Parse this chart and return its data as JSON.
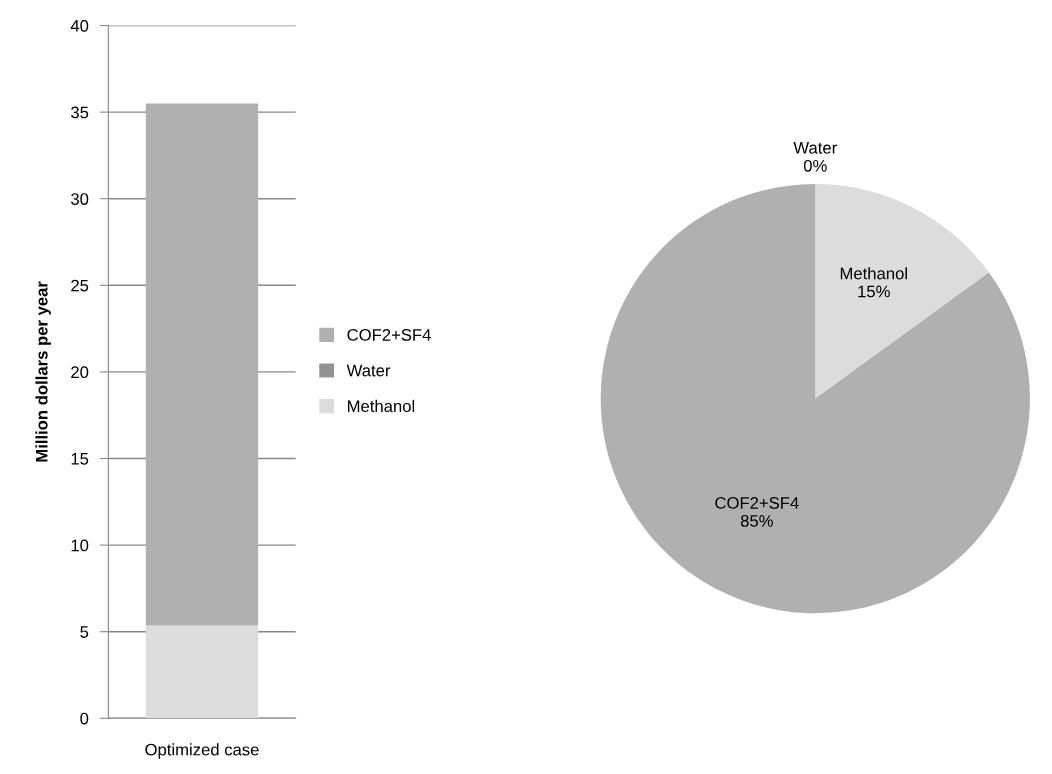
{
  "chart_data": [
    {
      "type": "bar",
      "stacked": true,
      "categories": [
        "Optimized case"
      ],
      "ylabel": "Million dollars per year",
      "ylim": [
        0,
        40
      ],
      "yticks": [
        0,
        5,
        10,
        15,
        20,
        25,
        30,
        35,
        40
      ],
      "grid": "y",
      "legend": "right",
      "series": [
        {
          "name": "Methanol",
          "color": "#dcdcdc",
          "values": [
            5.35
          ]
        },
        {
          "name": "Water",
          "color": "#929292",
          "values": [
            0
          ]
        },
        {
          "name": "COF2+SF4",
          "color": "#b0b0b0",
          "values": [
            30.15
          ]
        }
      ]
    },
    {
      "type": "pie",
      "categories": [
        "Water",
        "Methanol",
        "COF2+SF4"
      ],
      "values": [
        0,
        15,
        85
      ],
      "colors": [
        "#929292",
        "#dcdcdc",
        "#b0b0b0"
      ],
      "value_labels": [
        "0%",
        "15%",
        "85%"
      ]
    }
  ]
}
